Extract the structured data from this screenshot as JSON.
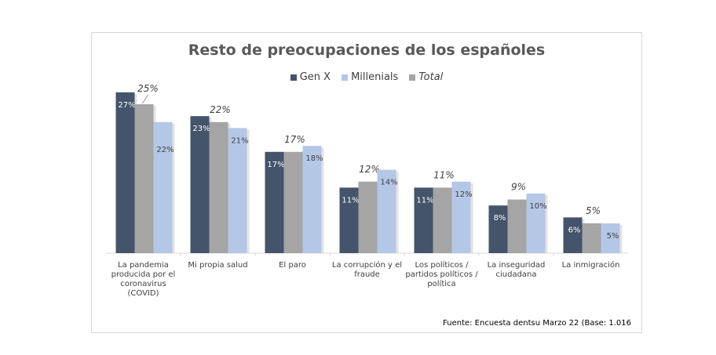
{
  "chart_data": {
    "type": "bar",
    "title": "Resto de preocupaciones de los españoles",
    "categories": [
      "La pandemia producida por el coronavirus (COVID)",
      "Mi propia salud",
      "El paro",
      "La corrupción y el fraude",
      "Los políticos / partidos políticos / política",
      "La inseguridad ciudadana",
      "La inmigración"
    ],
    "category_lines": [
      [
        "La pandemia",
        "producida por el",
        "coronavirus",
        "(COVID)"
      ],
      [
        "Mi propia salud"
      ],
      [
        "El paro"
      ],
      [
        "La corrupción y el",
        "fraude"
      ],
      [
        "Los políticos /",
        "partidos políticos /",
        "política"
      ],
      [
        "La inseguridad",
        "ciudadana"
      ],
      [
        "La inmigración"
      ]
    ],
    "series": [
      {
        "name": "Gen X",
        "color": "#44546a",
        "values": [
          27,
          23,
          17,
          11,
          11,
          8,
          6
        ],
        "labels": [
          "27%",
          "23%",
          "17%",
          "11%",
          "11%",
          "8%",
          "6%"
        ]
      },
      {
        "name": "Millenials",
        "color": "#b4c7e7",
        "values": [
          22,
          21,
          18,
          14,
          12,
          10,
          5
        ],
        "labels": [
          "22%",
          "21%",
          "18%",
          "14%",
          "12%",
          "10%",
          "5%"
        ]
      },
      {
        "name": "Total",
        "color": "#a5a5a5",
        "values": [
          25,
          22,
          17,
          12,
          11,
          9,
          5
        ],
        "labels": [
          "25%",
          "22%",
          "17%",
          "12%",
          "11%",
          "9%",
          "5%"
        ]
      }
    ],
    "ylim": [
      0,
      30
    ],
    "legend_position": "top",
    "grid": false
  },
  "source": "Fuente: Encuesta dentsu Marzo 22 (Base: 1.016"
}
